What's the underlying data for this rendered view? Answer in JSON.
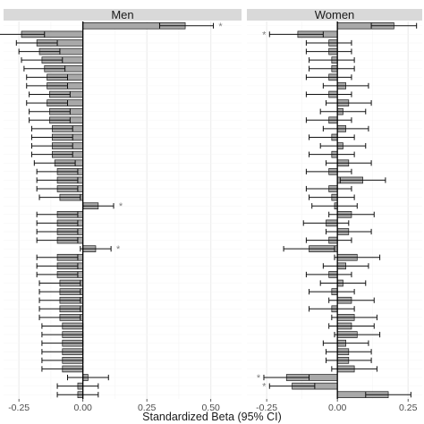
{
  "chart_data": {
    "type": "bar",
    "orientation": "horizontal",
    "xlabel": "Standardized Beta (95% CI)",
    "grid": true,
    "error_bars": "95% CI",
    "colors": {
      "bar_fill": "#a8a8a8",
      "bar_stroke": "#1a1a1a",
      "strip_bg": "#d9d9d9",
      "grid_major": "#ebebeb",
      "grid_minor": "#f5f5f5",
      "zero_line": "#000000",
      "star": "#7f7f7f"
    },
    "panels": [
      {
        "name": "Men",
        "xlim": [
          -0.31,
          0.62
        ],
        "xticks": [
          -0.25,
          0.0,
          0.25,
          0.5
        ],
        "tick_labels": [
          "-0.25",
          "0.00",
          "0.25",
          "0.50"
        ],
        "values": [
          0.4,
          -0.24,
          -0.18,
          -0.17,
          -0.16,
          -0.15,
          -0.14,
          -0.14,
          -0.13,
          -0.14,
          -0.13,
          -0.13,
          -0.12,
          -0.12,
          -0.12,
          -0.12,
          -0.11,
          -0.1,
          -0.1,
          -0.1,
          -0.09,
          0.06,
          -0.1,
          -0.1,
          -0.1,
          -0.1,
          0.05,
          -0.1,
          -0.1,
          -0.1,
          -0.09,
          -0.09,
          -0.09,
          -0.09,
          -0.09,
          -0.08,
          -0.08,
          -0.08,
          -0.08,
          -0.08,
          -0.08,
          0.02,
          -0.02,
          -0.02
        ],
        "ci_low": [
          0.3,
          -0.33,
          -0.26,
          -0.25,
          -0.24,
          -0.23,
          -0.22,
          -0.22,
          -0.21,
          -0.22,
          -0.21,
          -0.21,
          -0.2,
          -0.2,
          -0.2,
          -0.2,
          -0.19,
          -0.18,
          -0.18,
          -0.18,
          -0.17,
          0.0,
          -0.18,
          -0.18,
          -0.18,
          -0.18,
          -0.01,
          -0.18,
          -0.18,
          -0.18,
          -0.17,
          -0.17,
          -0.17,
          -0.17,
          -0.17,
          -0.16,
          -0.16,
          -0.16,
          -0.16,
          -0.16,
          -0.16,
          -0.06,
          -0.1,
          -0.1
        ],
        "ci_high": [
          0.51,
          -0.15,
          -0.1,
          -0.09,
          -0.08,
          -0.07,
          -0.06,
          -0.06,
          -0.05,
          -0.06,
          -0.05,
          -0.05,
          -0.04,
          -0.04,
          -0.04,
          -0.04,
          -0.03,
          -0.02,
          -0.02,
          -0.02,
          -0.01,
          0.12,
          -0.02,
          -0.02,
          -0.02,
          -0.02,
          0.11,
          -0.02,
          -0.02,
          -0.02,
          -0.01,
          -0.01,
          -0.01,
          -0.01,
          -0.01,
          0.0,
          0.0,
          0.0,
          0.0,
          0.0,
          0.0,
          0.1,
          0.06,
          0.06
        ],
        "stars": [
          "*",
          "",
          "",
          "",
          "",
          "",
          "",
          "",
          "",
          "",
          "",
          "",
          "",
          "",
          "",
          "",
          "",
          "",
          "",
          "",
          "",
          "*",
          "",
          "",
          "",
          "",
          "*",
          "",
          "",
          "",
          "",
          "",
          "",
          "",
          "",
          "",
          "",
          "",
          "",
          "",
          "",
          "",
          "",
          ""
        ]
      },
      {
        "name": "Women",
        "xlim": [
          -0.32,
          0.3
        ],
        "xticks": [
          -0.25,
          0.0,
          0.25
        ],
        "tick_labels": [
          "-0.25",
          "0.00",
          "0.25"
        ],
        "values": [
          0.2,
          -0.14,
          -0.03,
          -0.03,
          -0.02,
          -0.02,
          -0.03,
          0.03,
          -0.03,
          0.04,
          0.02,
          -0.03,
          0.03,
          -0.02,
          0.02,
          -0.02,
          0.04,
          -0.03,
          0.09,
          -0.03,
          -0.02,
          -0.01,
          0.05,
          -0.04,
          0.04,
          -0.03,
          -0.1,
          0.07,
          0.03,
          -0.03,
          0.02,
          -0.02,
          0.05,
          -0.02,
          0.06,
          0.05,
          0.07,
          0.03,
          0.04,
          0.04,
          0.06,
          -0.18,
          -0.16,
          0.18
        ],
        "ci_low": [
          0.12,
          -0.24,
          -0.11,
          -0.11,
          -0.1,
          -0.1,
          -0.11,
          -0.05,
          -0.11,
          -0.04,
          -0.06,
          -0.11,
          -0.05,
          -0.1,
          -0.06,
          -0.1,
          -0.04,
          -0.11,
          0.01,
          -0.11,
          -0.1,
          -0.09,
          -0.03,
          -0.12,
          -0.04,
          -0.11,
          -0.19,
          -0.01,
          -0.05,
          -0.11,
          -0.06,
          -0.1,
          -0.03,
          -0.1,
          -0.02,
          -0.03,
          -0.01,
          -0.05,
          -0.04,
          -0.04,
          -0.02,
          -0.26,
          -0.24,
          0.1
        ],
        "ci_high": [
          0.28,
          -0.05,
          0.05,
          0.05,
          0.06,
          0.06,
          0.05,
          0.11,
          0.05,
          0.12,
          0.1,
          0.05,
          0.11,
          0.06,
          0.1,
          0.06,
          0.12,
          0.05,
          0.17,
          0.05,
          0.06,
          0.07,
          0.13,
          0.04,
          0.12,
          0.05,
          -0.01,
          0.15,
          0.11,
          0.05,
          0.1,
          0.06,
          0.13,
          0.06,
          0.14,
          0.13,
          0.15,
          0.11,
          0.12,
          0.12,
          0.14,
          -0.1,
          -0.08,
          0.26
        ],
        "stars": [
          "",
          "*",
          "",
          "",
          "",
          "",
          "",
          "",
          "",
          "",
          "",
          "",
          "",
          "",
          "",
          "",
          "",
          "",
          "",
          "",
          "",
          "",
          "",
          "",
          "",
          "",
          "",
          "",
          "",
          "",
          "",
          "",
          "",
          "",
          "",
          "",
          "",
          "",
          "",
          "",
          "",
          "*",
          "*",
          ""
        ]
      }
    ]
  }
}
